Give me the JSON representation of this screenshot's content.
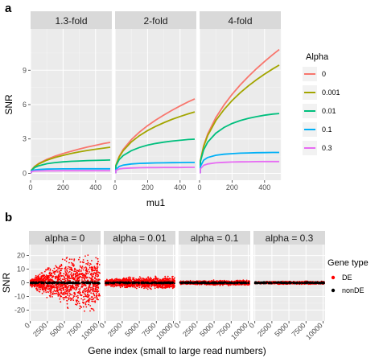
{
  "panel_a": {
    "letter": "a",
    "chart_data": {
      "type": "line",
      "facets": [
        "1.3-fold",
        "2-fold",
        "4-fold"
      ],
      "xlabel": "mu1",
      "ylabel": "SNR",
      "xlim": [
        0,
        500
      ],
      "ylim": [
        -0.6,
        12.6
      ],
      "xticks": [
        0,
        200,
        400
      ],
      "yticks": [
        0,
        3,
        6,
        9
      ],
      "grid": true,
      "legend": {
        "title": "Alpha",
        "placement": "right",
        "entries": [
          "0",
          "0.001",
          "0.01",
          "0.1",
          "0.3"
        ],
        "colors": [
          "#F8766D",
          "#A3A500",
          "#00BF7D",
          "#00B0F6",
          "#E76BF3"
        ]
      },
      "x": [
        5,
        25,
        50,
        100,
        150,
        200,
        250,
        300,
        350,
        400,
        450,
        490
      ],
      "series_by_facet": {
        "1.3-fold": [
          {
            "name": "0",
            "values": [
              0.28,
              0.6,
              0.86,
              1.22,
              1.5,
              1.73,
              1.93,
              2.12,
              2.29,
              2.45,
              2.6,
              2.7
            ]
          },
          {
            "name": "0.001",
            "values": [
              0.27,
              0.58,
              0.82,
              1.15,
              1.38,
              1.57,
              1.73,
              1.87,
              2.0,
              2.1,
              2.2,
              2.28
            ]
          },
          {
            "name": "0.01",
            "values": [
              0.25,
              0.5,
              0.66,
              0.84,
              0.94,
              1.0,
              1.05,
              1.08,
              1.11,
              1.13,
              1.15,
              1.16
            ]
          },
          {
            "name": "0.1",
            "values": [
              0.2,
              0.3,
              0.34,
              0.37,
              0.38,
              0.39,
              0.39,
              0.4,
              0.4,
              0.4,
              0.4,
              0.4
            ]
          },
          {
            "name": "0.3",
            "values": [
              0.15,
              0.2,
              0.21,
              0.22,
              0.22,
              0.23,
              0.23,
              0.23,
              0.23,
              0.23,
              0.23,
              0.23
            ]
          }
        ],
        "2-fold": [
          {
            "name": "0",
            "values": [
              0.7,
              1.47,
              2.08,
              2.94,
              3.6,
              4.16,
              4.65,
              5.09,
              5.5,
              5.88,
              6.24,
              6.5
            ]
          },
          {
            "name": "0.001",
            "values": [
              0.69,
              1.42,
              1.98,
              2.74,
              3.29,
              3.73,
              4.1,
              4.42,
              4.71,
              4.96,
              5.19,
              5.36
            ]
          },
          {
            "name": "0.01",
            "values": [
              0.63,
              1.2,
              1.55,
              1.98,
              2.26,
              2.46,
              2.61,
              2.72,
              2.81,
              2.88,
              2.95,
              2.98
            ]
          },
          {
            "name": "0.1",
            "values": [
              0.35,
              0.6,
              0.72,
              0.82,
              0.87,
              0.89,
              0.91,
              0.92,
              0.93,
              0.94,
              0.95,
              0.95
            ]
          },
          {
            "name": "0.3",
            "values": [
              0.25,
              0.38,
              0.43,
              0.47,
              0.49,
              0.5,
              0.5,
              0.51,
              0.51,
              0.51,
              0.52,
              0.52
            ]
          }
        ],
        "4-fold": [
          {
            "name": "0",
            "values": [
              1.1,
              2.41,
              3.43,
              4.86,
              5.96,
              6.89,
              7.71,
              8.45,
              9.13,
              9.76,
              10.36,
              10.8
            ]
          },
          {
            "name": "0.001",
            "values": [
              1.09,
              2.35,
              3.3,
              4.6,
              5.56,
              6.35,
              7.03,
              7.63,
              8.17,
              8.66,
              9.11,
              9.45
            ]
          },
          {
            "name": "0.01",
            "values": [
              1.02,
              2.05,
              2.72,
              3.5,
              4.0,
              4.35,
              4.6,
              4.8,
              4.95,
              5.07,
              5.17,
              5.22
            ]
          },
          {
            "name": "0.1",
            "values": [
              0.6,
              1.15,
              1.38,
              1.58,
              1.67,
              1.72,
              1.76,
              1.78,
              1.8,
              1.81,
              1.82,
              1.82
            ]
          },
          {
            "name": "0.3",
            "values": [
              0.4,
              0.7,
              0.82,
              0.92,
              0.96,
              0.99,
              1.0,
              1.01,
              1.02,
              1.03,
              1.03,
              1.03
            ]
          }
        ]
      }
    }
  },
  "panel_b": {
    "letter": "b",
    "chart_data": {
      "type": "scatter",
      "facets": [
        "alpha = 0",
        "alpha = 0.01",
        "alpha = 0.1",
        "alpha = 0.3"
      ],
      "xlabel": "Gene index (small to large read numbers)",
      "ylabel": "SNR",
      "xlim": [
        -200,
        10300
      ],
      "ylim": [
        -28,
        28
      ],
      "xticks": [
        0,
        2500,
        5000,
        7500,
        10000
      ],
      "yticks": [
        -20,
        -10,
        0,
        10,
        20
      ],
      "grid": true,
      "legend": {
        "title": "Gene type",
        "placement": "right",
        "entries": [
          "DE",
          "nonDE"
        ],
        "colors": [
          "#FF0000",
          "#000000"
        ]
      },
      "de_spread_at_x": {
        "x": [
          0,
          2500,
          5000,
          7500,
          10000
        ],
        "alpha = 0": [
          3,
          12,
          18,
          22,
          24
        ],
        "alpha = 0.01": [
          2.5,
          4,
          4.5,
          4.8,
          5
        ],
        "alpha = 0.1": [
          1.2,
          1.6,
          1.8,
          1.9,
          2
        ],
        "alpha = 0.3": [
          0.8,
          1.0,
          1.1,
          1.2,
          1.2
        ]
      },
      "nonDE_spread": 0.6
    }
  }
}
